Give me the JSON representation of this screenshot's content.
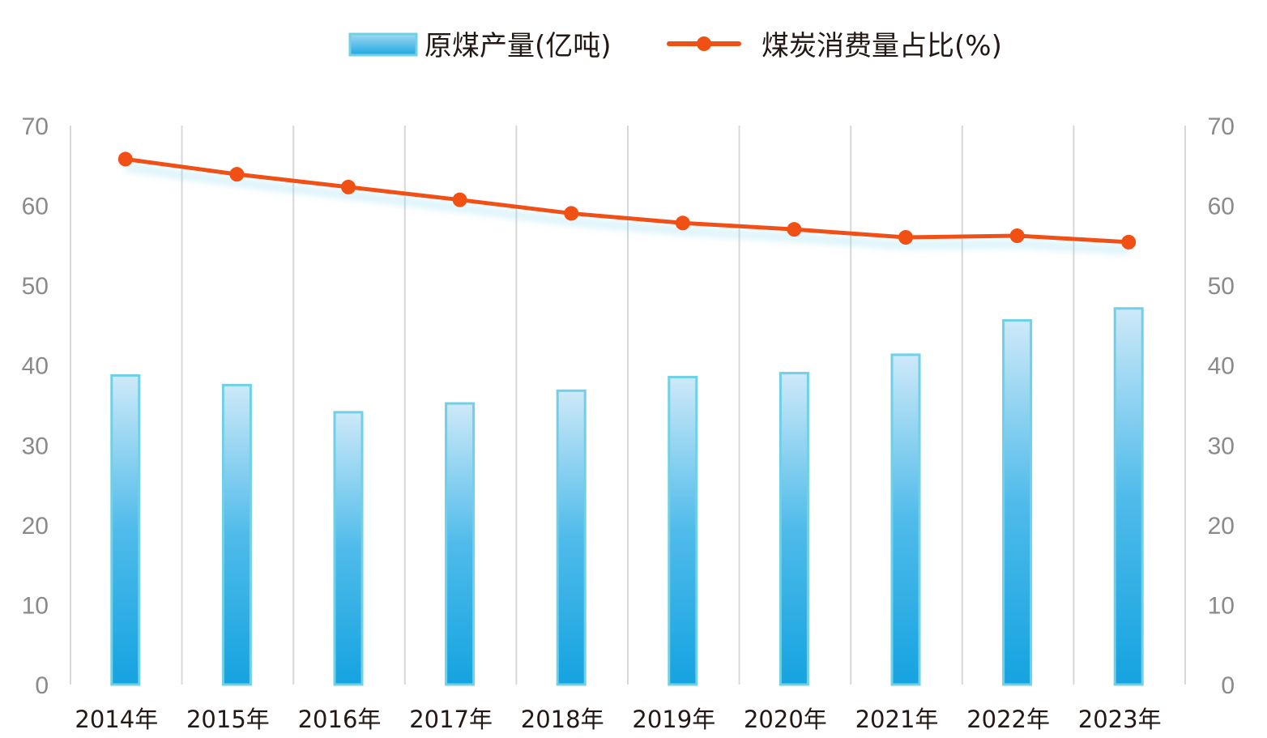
{
  "chart_data": {
    "type": "bar+line",
    "categories": [
      "2014年",
      "2015年",
      "2016年",
      "2017年",
      "2018年",
      "2019年",
      "2020年",
      "2021年",
      "2022年",
      "2023年"
    ],
    "series": [
      {
        "name": "原煤产量(亿吨)",
        "type": "bar",
        "axis": "left",
        "values": [
          38.7,
          37.5,
          34.1,
          35.2,
          36.8,
          38.5,
          39.0,
          41.3,
          45.6,
          47.1
        ]
      },
      {
        "name": "煤炭消费量占比(%)",
        "type": "line",
        "axis": "right",
        "values": [
          65.8,
          63.9,
          62.3,
          60.7,
          59.0,
          57.8,
          57.0,
          56.0,
          56.2,
          55.4
        ]
      }
    ],
    "ylim": [
      0,
      70
    ],
    "y_ticks": [
      "0",
      "10",
      "20",
      "30",
      "40",
      "50",
      "60",
      "70"
    ],
    "y2lim": [
      0,
      70
    ],
    "y2_ticks": [
      "0",
      "10",
      "20",
      "30",
      "40",
      "50",
      "60",
      "70"
    ],
    "grid": "vertical",
    "legend": "top",
    "colors": {
      "bar": "#1ea7e1",
      "bar_top": "#cde9f8",
      "bar_border": "#6fd0e6",
      "line": "#f05014"
    }
  }
}
